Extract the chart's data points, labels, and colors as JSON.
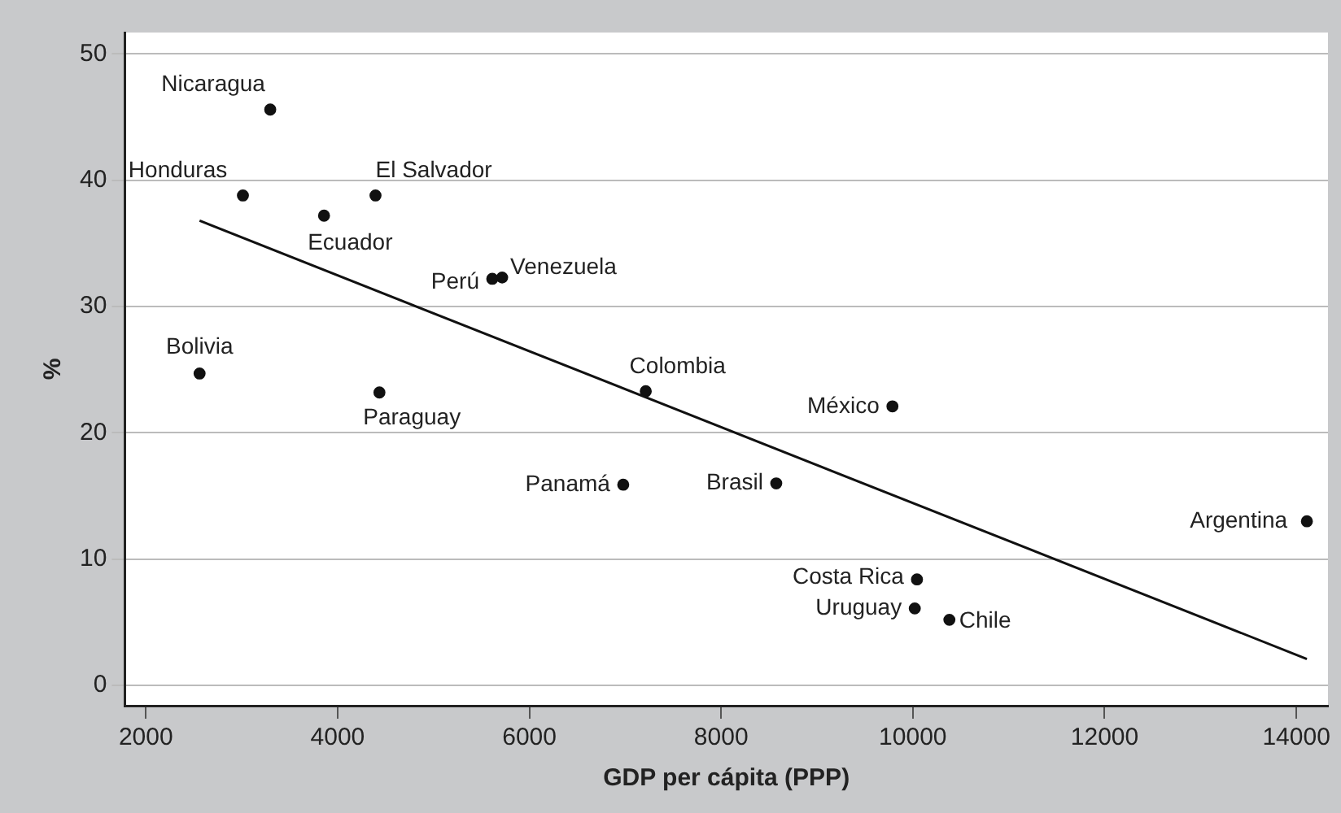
{
  "chart_data": {
    "type": "scatter",
    "xlabel": "GDP per cápita (PPP)",
    "ylabel": "%",
    "xlim": [
      1780,
      14330
    ],
    "ylim": [
      -1.6,
      51.7
    ],
    "xticks": [
      2000,
      4000,
      6000,
      8000,
      10000,
      12000,
      14000
    ],
    "yticks": [
      0,
      10,
      20,
      30,
      40,
      50
    ],
    "grid": "y",
    "series": [
      {
        "color": "#111111",
        "marker": "circle",
        "x": [
          3297,
          3012,
          3858,
          4395,
          5613,
          5716,
          2560,
          4436,
          7214,
          6979,
          9787,
          8575,
          14110,
          10043,
          10020,
          10381
        ],
        "values": [
          45.6,
          38.8,
          37.2,
          38.8,
          32.2,
          32.3,
          24.7,
          23.2,
          23.3,
          15.9,
          22.1,
          16.0,
          13.0,
          8.4,
          6.1,
          5.2
        ]
      },
      {
        "type": "line",
        "marker": "none",
        "color": "#111111",
        "x": [
          2560,
          14110
        ],
        "values": [
          36.8,
          2.1
        ]
      }
    ],
    "annotations": [
      {
        "text": "Nicaragua",
        "x": 3297,
        "y": 45.6
      },
      {
        "text": "Honduras",
        "x": 3012,
        "y": 38.8
      },
      {
        "text": "Ecuador",
        "x": 3858,
        "y": 37.2
      },
      {
        "text": "El Salvador",
        "x": 4395,
        "y": 38.8
      },
      {
        "text": "Perú",
        "x": 5613,
        "y": 32.2
      },
      {
        "text": "Venezuela",
        "x": 5716,
        "y": 32.3
      },
      {
        "text": "Bolivia",
        "x": 2560,
        "y": 24.7
      },
      {
        "text": "Paraguay",
        "x": 4436,
        "y": 23.2
      },
      {
        "text": "Colombia",
        "x": 7214,
        "y": 23.3
      },
      {
        "text": "Panamá",
        "x": 6979,
        "y": 15.9
      },
      {
        "text": "México",
        "x": 9787,
        "y": 22.1
      },
      {
        "text": "Brasil",
        "x": 8575,
        "y": 16.0
      },
      {
        "text": "Argentina",
        "x": 14110,
        "y": 13.0
      },
      {
        "text": "Costa Rica",
        "x": 10043,
        "y": 8.4
      },
      {
        "text": "Uruguay",
        "x": 10020,
        "y": 6.1
      },
      {
        "text": "Chile",
        "x": 10381,
        "y": 5.2
      }
    ]
  }
}
